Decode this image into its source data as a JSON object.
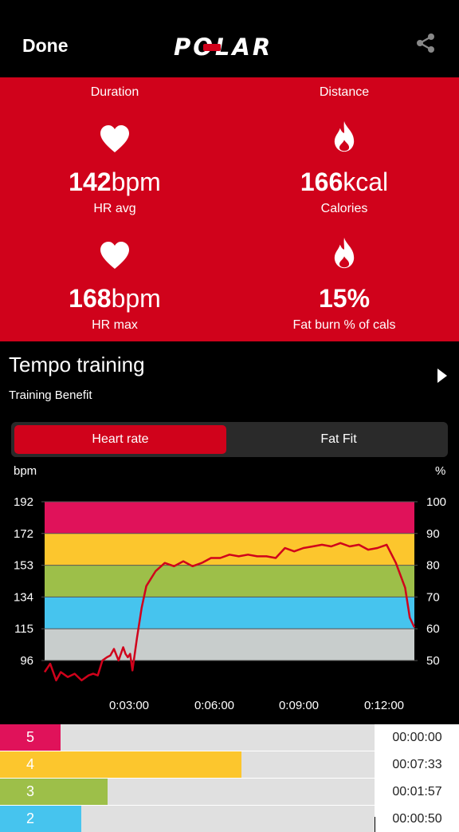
{
  "header": {
    "done_label": "Done",
    "logo_text": "POLAR",
    "share_icon": "share-icon"
  },
  "stats": {
    "duration_label": "Duration",
    "distance_label": "Distance",
    "hr_avg": {
      "value": "142",
      "unit": "bpm",
      "label": "HR avg",
      "icon": "heart-icon"
    },
    "calories": {
      "value": "166",
      "unit": "kcal",
      "label": "Calories",
      "icon": "flame-icon"
    },
    "hr_max": {
      "value": "168",
      "unit": "bpm",
      "label": "HR max",
      "icon": "heart-icon"
    },
    "fat_burn": {
      "value": "15",
      "unit": "%",
      "label": "Fat burn % of cals",
      "icon": "flame-icon"
    }
  },
  "training": {
    "title": "Tempo training",
    "subtitle": "Training Benefit"
  },
  "tabs": {
    "heart_rate": "Heart rate",
    "fat_fit": "Fat Fit"
  },
  "colors": {
    "zone5": "#e0125a",
    "zone4": "#fcc62d",
    "zone3": "#9dbf49",
    "zone2": "#46c4ee",
    "zone1": "#c8cdcc",
    "line": "#d0021b",
    "brand": "#d0021b"
  },
  "chart_data": {
    "type": "line",
    "ylabel": "bpm",
    "y2label": "%",
    "yticks": [
      "192",
      "172",
      "153",
      "134",
      "115",
      "96"
    ],
    "y2ticks": [
      "100",
      "90",
      "80",
      "70",
      "60",
      "50"
    ],
    "xticks": [
      "0:03:00",
      "0:06:00",
      "0:09:00",
      "0:12:00"
    ],
    "xlim": [
      0,
      800
    ],
    "ylim": [
      77,
      192
    ],
    "series": [
      {
        "x": [
          0,
          12,
          25,
          35,
          50,
          65,
          80,
          95,
          105,
          115,
          125,
          135,
          142,
          150,
          160,
          170,
          175,
          180,
          185,
          190,
          200,
          210,
          220,
          240,
          260,
          280,
          300,
          320,
          340,
          360,
          380,
          400,
          420,
          440,
          460,
          480,
          500,
          520,
          540,
          560,
          580,
          600,
          620,
          640,
          660,
          680,
          700,
          720,
          740,
          760,
          780,
          790,
          800
        ],
        "y": [
          89,
          94,
          84,
          89,
          86,
          88,
          84,
          87,
          88,
          87,
          96,
          98,
          99,
          103,
          96,
          104,
          100,
          98,
          100,
          90,
          110,
          128,
          141,
          150,
          155,
          153,
          156,
          153,
          155,
          158,
          158,
          160,
          159,
          160,
          159,
          159,
          158,
          164,
          162,
          164,
          165,
          166,
          165,
          167,
          165,
          166,
          163,
          164,
          166,
          155,
          140,
          122,
          116
        ]
      }
    ]
  },
  "zones": [
    {
      "num": "5",
      "time": "00:00:00",
      "frac": 0.0
    },
    {
      "num": "4",
      "time": "00:07:33",
      "frac": 0.575
    },
    {
      "num": "3",
      "time": "00:01:57",
      "frac": 0.15
    },
    {
      "num": "2",
      "time": "00:00:50",
      "frac": 0.065
    }
  ]
}
